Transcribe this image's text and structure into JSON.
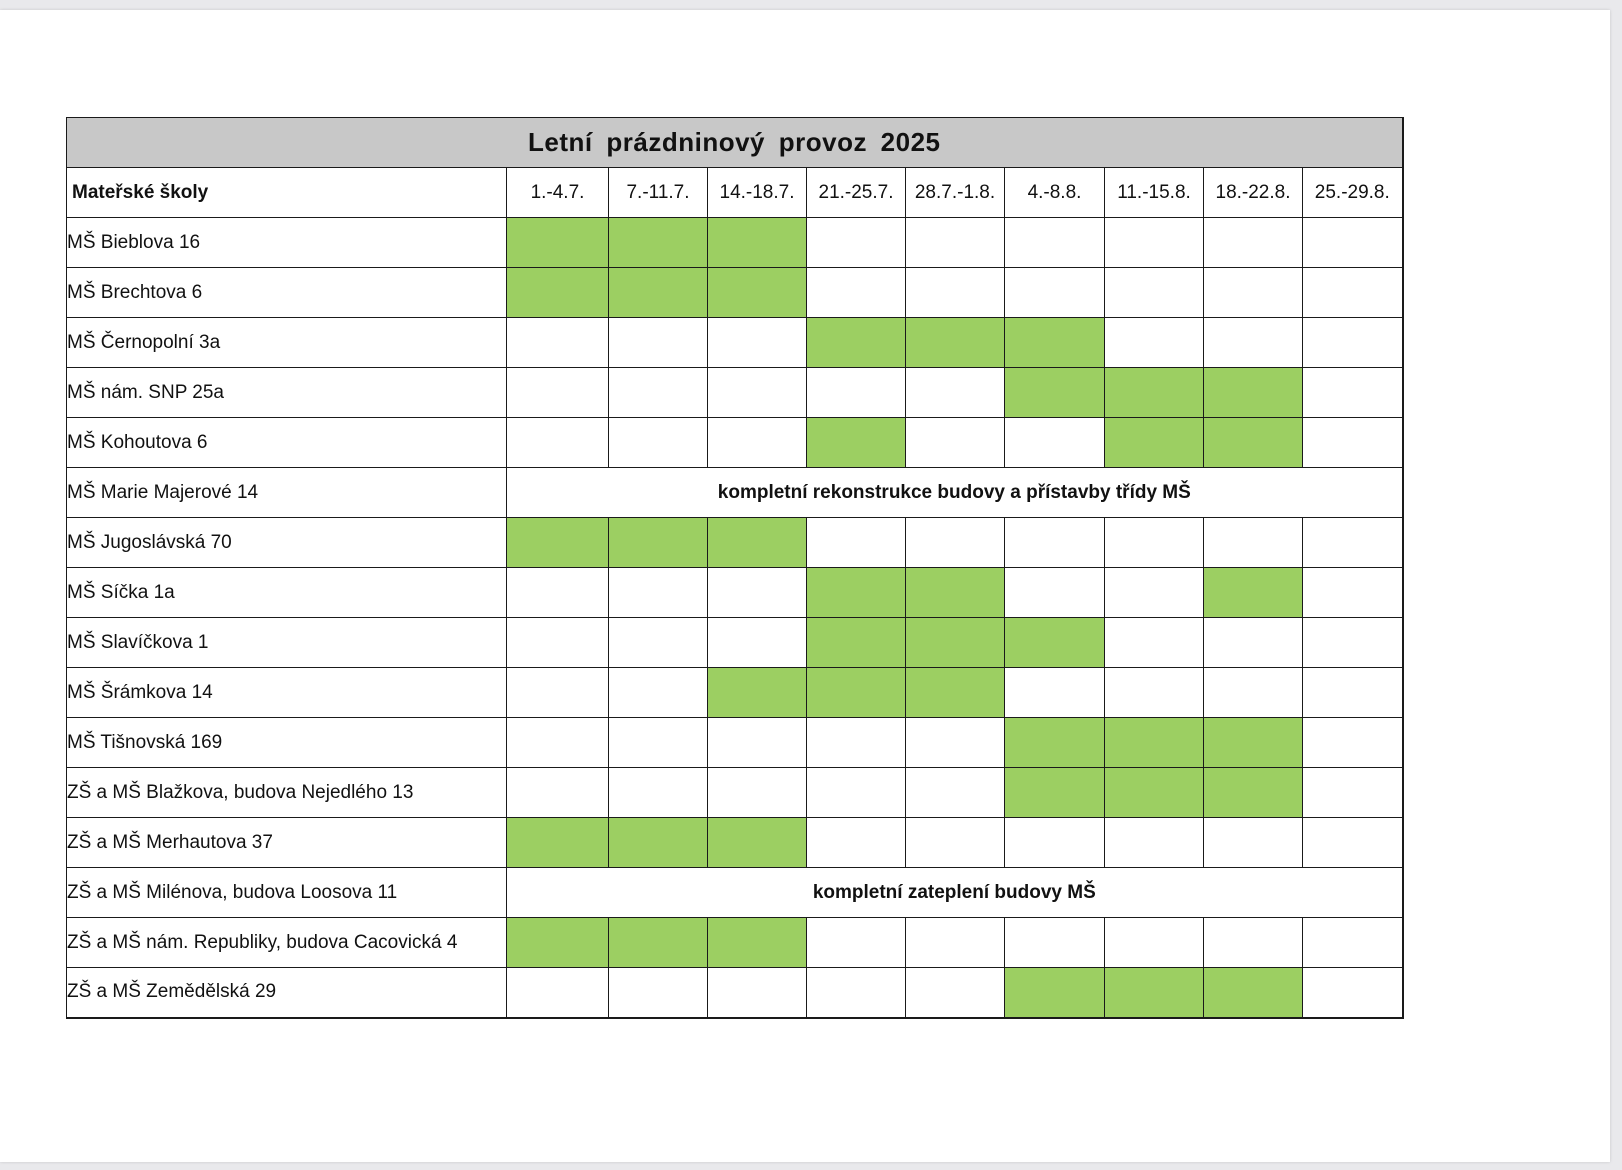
{
  "title": "Letní prázdninový provoz 2025",
  "header": {
    "school_col": "Mateřské školy",
    "weeks": [
      "1.-4.7.",
      "7.-11.7.",
      "14.-18.7.",
      "21.-25.7.",
      "28.7.-1.8.",
      "4.-8.8.",
      "11.-15.8.",
      "18.-22.8.",
      "25.-29.8."
    ]
  },
  "colors": {
    "open": "#9ccf62",
    "header_bg": "#c8c8c8"
  },
  "rows": [
    {
      "name": "MŠ Bieblova 16",
      "open": [
        1,
        1,
        1,
        0,
        0,
        0,
        0,
        0,
        0
      ]
    },
    {
      "name": "MŠ Brechtova 6",
      "open": [
        1,
        1,
        1,
        0,
        0,
        0,
        0,
        0,
        0
      ]
    },
    {
      "name": "MŠ Černopolní 3a",
      "open": [
        0,
        0,
        0,
        1,
        1,
        1,
        0,
        0,
        0
      ]
    },
    {
      "name": "MŠ nám. SNP 25a",
      "open": [
        0,
        0,
        0,
        0,
        0,
        1,
        1,
        1,
        0
      ]
    },
    {
      "name": "MŠ Kohoutova 6",
      "open": [
        0,
        0,
        0,
        1,
        0,
        0,
        1,
        1,
        0
      ]
    },
    {
      "name": "MŠ Marie Majerové 14",
      "note": "kompletní rekonstrukce budovy a přístavby třídy MŠ"
    },
    {
      "name": "MŠ Jugoslávská 70",
      "open": [
        1,
        1,
        1,
        0,
        0,
        0,
        0,
        0,
        0
      ]
    },
    {
      "name": "MŠ Síčka 1a",
      "open": [
        0,
        0,
        0,
        1,
        1,
        0,
        0,
        1,
        0
      ]
    },
    {
      "name": "MŠ Slavíčkova 1",
      "open": [
        0,
        0,
        0,
        1,
        1,
        1,
        0,
        0,
        0
      ]
    },
    {
      "name": "MŠ Šrámkova 14",
      "open": [
        0,
        0,
        1,
        1,
        1,
        0,
        0,
        0,
        0
      ]
    },
    {
      "name": "MŠ Tišnovská 169",
      "open": [
        0,
        0,
        0,
        0,
        0,
        1,
        1,
        1,
        0
      ]
    },
    {
      "name": "ZŠ a MŠ Blažkova, budova Nejedlého 13",
      "open": [
        0,
        0,
        0,
        0,
        0,
        1,
        1,
        1,
        0
      ]
    },
    {
      "name": "ZŠ a MŠ Merhautova 37",
      "open": [
        1,
        1,
        1,
        0,
        0,
        0,
        0,
        0,
        0
      ]
    },
    {
      "name": "ZŠ a MŠ Milénova, budova Loosova 11",
      "note": "kompletní zateplení budovy MŠ"
    },
    {
      "name": "ZŠ a MŠ nám. Republiky, budova  Cacovická 4",
      "open": [
        1,
        1,
        1,
        0,
        0,
        0,
        0,
        0,
        0
      ]
    },
    {
      "name": "ZŠ a MŠ Zemědělská 29",
      "open": [
        0,
        0,
        0,
        0,
        0,
        1,
        1,
        1,
        0
      ]
    }
  ]
}
